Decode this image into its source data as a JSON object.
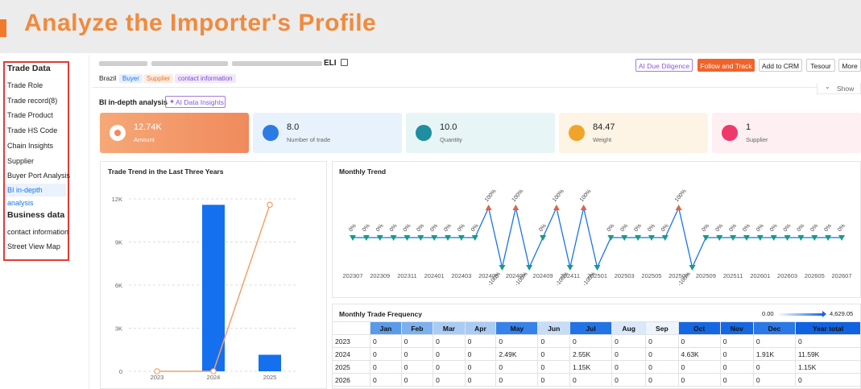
{
  "banner": {
    "title": "Analyze the Importer's Profile"
  },
  "sidebar": {
    "active": "BI in-depth analysis",
    "sections": [
      {
        "title": "Trade Data",
        "items": [
          "Trade Role",
          "Trade record(8)",
          "Trade Product",
          "Trade HS Code",
          "Chain Insights",
          "Supplier",
          "Buyer Port Analysis",
          "BI in-depth analysis"
        ]
      },
      {
        "title": "Business data",
        "items": [
          "contact information",
          "Street View Map"
        ]
      }
    ]
  },
  "header": {
    "name_visible": "ELI",
    "country": "Brazil",
    "tags": [
      "Buyer",
      "Supplier",
      "contact information"
    ],
    "buttons": [
      "AI Due Diligence",
      "Follow and Track",
      "Add to CRM",
      "Tesour",
      "More"
    ],
    "toggle": "Show"
  },
  "section": {
    "title": "BI in-depth analysis",
    "button": "AI Data Insights"
  },
  "stats": [
    {
      "value": "12.74K",
      "label": "Amount"
    },
    {
      "value": "8.0",
      "label": "Number of trade"
    },
    {
      "value": "10.0",
      "label": "Quantity"
    },
    {
      "value": "84.47",
      "label": "Weight"
    },
    {
      "value": "1",
      "label": "Supplier"
    }
  ],
  "chart_data": [
    {
      "type": "bar",
      "title": "Trade Trend in the Last Three Years",
      "categories": [
        "2023",
        "2024",
        "2025"
      ],
      "series": [
        {
          "type": "bar",
          "color": "#1570ef",
          "values": [
            0,
            11590,
            1150
          ]
        },
        {
          "type": "line",
          "color": "#f4a06a",
          "values": [
            0,
            0,
            11590
          ]
        }
      ],
      "ylim": [
        0,
        12000
      ],
      "yticks": [
        0,
        {
          "value": 3000,
          "label": "3K"
        },
        {
          "value": 6000,
          "label": "6K"
        },
        {
          "value": 9000,
          "label": "9K"
        },
        {
          "value": 12000,
          "label": "12K"
        }
      ],
      "grid": true
    },
    {
      "type": "line",
      "title": "Monthly Trend",
      "color": "#1a73e8",
      "up_color": "#e8603c",
      "down_color": "#169c86",
      "categories": [
        "202307",
        null,
        "202309",
        null,
        "202311",
        null,
        "202401",
        null,
        "202403",
        null,
        "202405",
        null,
        "202407",
        null,
        "202409",
        null,
        "202411",
        null,
        "202501",
        null,
        "202503",
        null,
        "202505",
        null,
        "202507",
        null,
        "202509",
        null,
        "202511",
        null,
        "202601",
        null,
        "202603",
        null,
        "202605",
        null,
        "202607"
      ],
      "values": [
        0,
        0,
        0,
        0,
        0,
        0,
        0,
        0,
        0,
        0,
        100,
        -100,
        100,
        -100,
        0,
        100,
        -100,
        100,
        -100,
        0,
        0,
        0,
        0,
        0,
        100,
        -100,
        0,
        0,
        0,
        0,
        0,
        0,
        0,
        0,
        0,
        0,
        0
      ],
      "value_labels": [
        "0%",
        "0%",
        "0%",
        "0%",
        "0%",
        "0%",
        "0%",
        "0%",
        "0%",
        "0%",
        "100%",
        "-100%",
        "100%",
        "-100%",
        "0%",
        "100%",
        "-100%",
        "100%",
        "-100%",
        "0%",
        "0%",
        "0%",
        "0%",
        "0%",
        "100%",
        "-100%",
        "0%",
        "0%",
        "0%",
        "0%",
        "0%",
        "0%",
        "0%",
        "0%",
        "0%",
        "0%",
        "0%"
      ],
      "ylim": [
        -100,
        100
      ]
    }
  ],
  "table": {
    "title": "Monthly Trade Frequency",
    "scale": {
      "min": "0.00",
      "max": "4,629.05"
    },
    "columns": [
      "Jan",
      "Feb",
      "Mar",
      "Apr",
      "May",
      "Jun",
      "Jul",
      "Aug",
      "Sep",
      "Oct",
      "Nov",
      "Dec",
      "Year total"
    ],
    "header_colors": [
      "#5a9ae8",
      "#7db0ee",
      "#a9cbf4",
      "#a9cbf4",
      "#3583ea",
      "#c6dcf7",
      "#2274e6",
      "#d9e8fa",
      "#eef4fc",
      "#1668e2",
      "#1668e2",
      "#2a79e7",
      "#1062e0"
    ],
    "rows": [
      [
        "2023",
        "0",
        "0",
        "0",
        "0",
        "0",
        "0",
        "0",
        "0",
        "0",
        "0",
        "0",
        "0",
        "0"
      ],
      [
        "2024",
        "0",
        "0",
        "0",
        "0",
        "2.49K",
        "0",
        "2.55K",
        "0",
        "0",
        "4.63K",
        "0",
        "1.91K",
        "11.59K"
      ],
      [
        "2025",
        "0",
        "0",
        "0",
        "0",
        "0",
        "0",
        "1.15K",
        "0",
        "0",
        "0",
        "0",
        "0",
        "1.15K"
      ],
      [
        "2026",
        "0",
        "0",
        "0",
        "0",
        "0",
        "0",
        "0",
        "0",
        "0",
        "0",
        "0",
        "0",
        "0"
      ]
    ]
  }
}
